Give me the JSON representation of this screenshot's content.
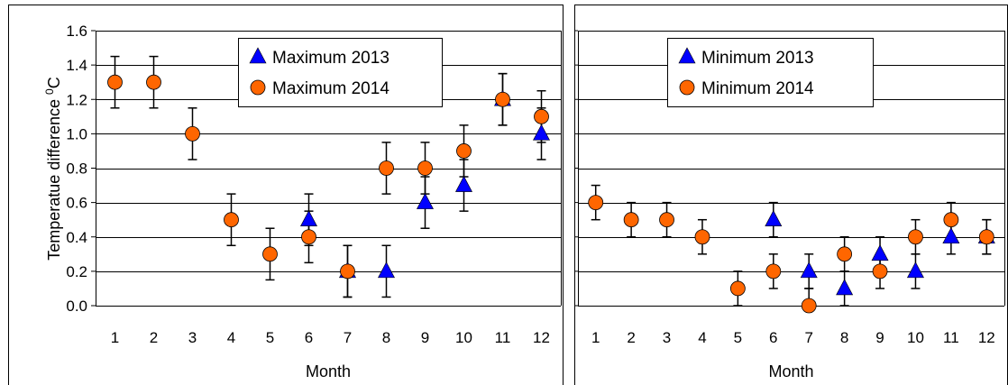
{
  "colors": {
    "series_2013": "#0000ff",
    "series_2014": "#ff6600",
    "grid": "#000000",
    "frame": "#000000"
  },
  "chart_data": [
    {
      "type": "scatter",
      "title": "",
      "xlabel": "Month",
      "ylabel": "Temperatue difference",
      "ylabel_sup": "0",
      "ylabel_unit": "C",
      "categories": [
        "1",
        "2",
        "3",
        "4",
        "5",
        "6",
        "7",
        "8",
        "9",
        "10",
        "11",
        "12"
      ],
      "ylim": [
        0,
        1.6
      ],
      "yticks": [
        "0.0",
        "0.2",
        "0.4",
        "0.6",
        "0.8",
        "1.0",
        "1.2",
        "1.4",
        "1.6"
      ],
      "grid": "horizontal",
      "legend_position": "top-center",
      "series": [
        {
          "name": "Maximum 2013",
          "marker": "triangle",
          "color": "#0000ff",
          "values": [
            null,
            null,
            null,
            null,
            null,
            0.5,
            0.2,
            0.2,
            0.6,
            0.7,
            1.2,
            1.0
          ],
          "error": [
            null,
            null,
            null,
            null,
            null,
            0.15,
            0.15,
            0.15,
            0.15,
            0.15,
            0.15,
            0.15
          ]
        },
        {
          "name": "Maximum 2014",
          "marker": "circle",
          "color": "#ff6600",
          "values": [
            1.3,
            1.3,
            1.0,
            0.5,
            0.3,
            0.4,
            0.2,
            0.8,
            0.8,
            0.9,
            1.2,
            1.1
          ],
          "error": [
            0.15,
            0.15,
            0.15,
            0.15,
            0.15,
            0.15,
            0.15,
            0.15,
            0.15,
            0.15,
            0.15,
            0.15
          ]
        }
      ]
    },
    {
      "type": "scatter",
      "title": "",
      "xlabel": "Month",
      "ylabel": "",
      "categories": [
        "1",
        "2",
        "3",
        "4",
        "5",
        "6",
        "7",
        "8",
        "9",
        "10",
        "11",
        "12"
      ],
      "ylim": [
        0,
        1.6
      ],
      "grid": "horizontal",
      "legend_position": "top-center",
      "series": [
        {
          "name": "Minimum 2013",
          "marker": "triangle",
          "color": "#0000ff",
          "values": [
            null,
            null,
            null,
            null,
            null,
            0.5,
            0.2,
            0.1,
            0.3,
            0.2,
            0.4,
            0.4
          ],
          "error": [
            null,
            null,
            null,
            null,
            null,
            0.1,
            0.1,
            0.1,
            0.1,
            0.1,
            0.1,
            0.1
          ]
        },
        {
          "name": "Minimum 2014",
          "marker": "circle",
          "color": "#ff6600",
          "values": [
            0.6,
            0.5,
            0.5,
            0.4,
            0.1,
            0.2,
            0.0,
            0.3,
            0.2,
            0.4,
            0.5,
            0.4
          ],
          "error": [
            0.1,
            0.1,
            0.1,
            0.1,
            0.1,
            0.1,
            0.1,
            0.1,
            0.1,
            0.1,
            0.1,
            0.1
          ]
        }
      ]
    }
  ]
}
